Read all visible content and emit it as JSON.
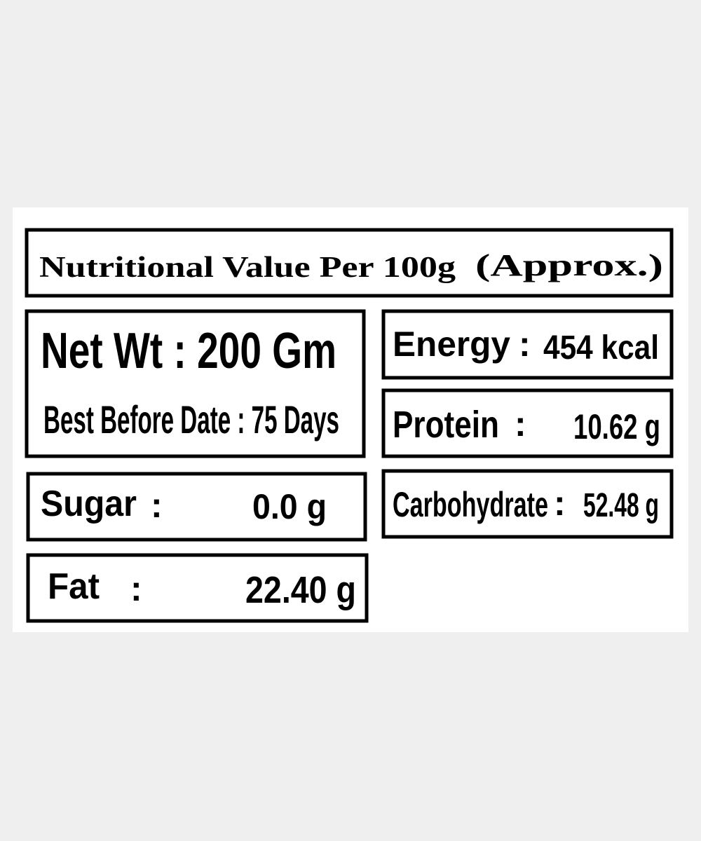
{
  "header": {
    "title": "Nutritional Value Per 100g",
    "note": "(Approx.)"
  },
  "net_box": {
    "net_weight": "Net Wt : 200 Gm",
    "best_before": "Best Before Date : 75 Days"
  },
  "items": [
    {
      "label": "Energy",
      "separator": ":",
      "value": "454 kcal"
    },
    {
      "label": "Protein",
      "separator": ":",
      "value": "10.62 g"
    },
    {
      "label": "Carbohydrate",
      "separator": ":",
      "value": "52.48 g"
    },
    {
      "label": "Sugar",
      "separator": ":",
      "value": "0.0 g"
    },
    {
      "label": "Fat",
      "separator": ":",
      "value": "22.40 g"
    }
  ]
}
